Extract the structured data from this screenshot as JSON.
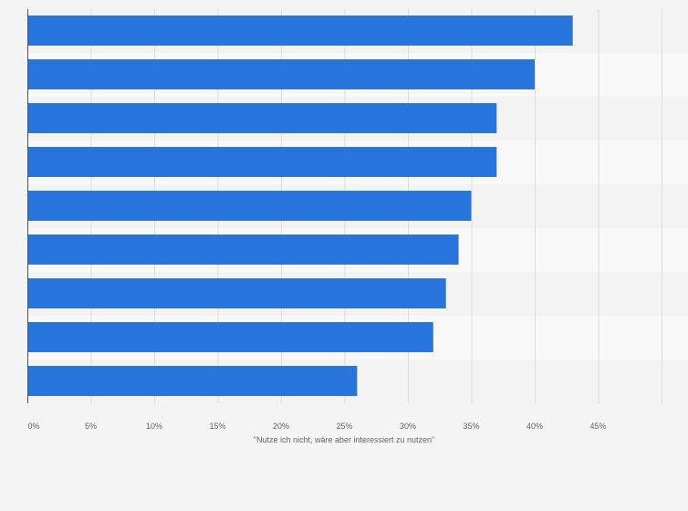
{
  "chart_data": {
    "type": "bar",
    "orientation": "horizontal",
    "categories": [
      "",
      "",
      "",
      "",
      "",
      "",
      "",
      "",
      ""
    ],
    "values": [
      43,
      40,
      37,
      37,
      35,
      34,
      33,
      32,
      26
    ],
    "xlabel": "\"Nutze ich nicht, wäre aber interessiert zu nutzen\"",
    "ylabel": "",
    "xlim": [
      0,
      50
    ],
    "x_ticks": [
      0,
      5,
      10,
      15,
      20,
      25,
      30,
      35,
      40,
      45
    ],
    "x_tick_labels": [
      "0%",
      "5%",
      "10%",
      "15%",
      "20%",
      "25%",
      "30%",
      "35%",
      "40%",
      "45%"
    ],
    "grid": true,
    "legend": "none"
  },
  "colors": {
    "bar": "#2876dd",
    "band_light": "#f8f8f8",
    "band_dark": "#f3f3f3",
    "grid": "#dddddd",
    "axis": "#555555"
  }
}
